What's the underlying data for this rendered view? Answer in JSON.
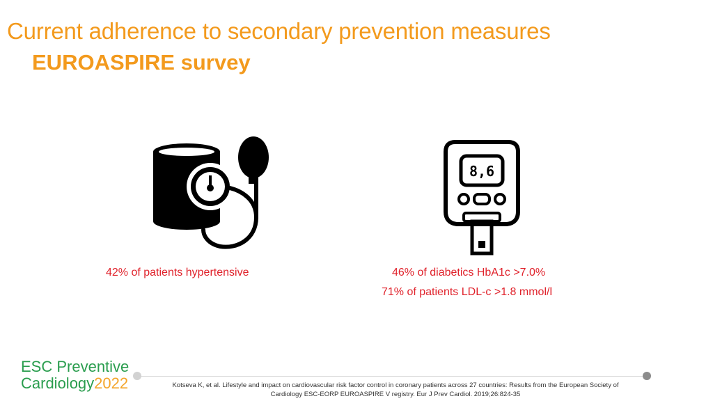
{
  "slide": {
    "title": "Current adherence to secondary prevention measures",
    "subtitle": "EUROASPIRE survey"
  },
  "icons": {
    "blood_pressure": "blood-pressure-monitor-icon",
    "glucometer": "glucometer-icon",
    "glucometer_reading": "8,6"
  },
  "stats": {
    "hypertensive": "42% of patients hypertensive",
    "hba1c": "46% of diabetics HbA1c >7.0%",
    "ldl": "71% of patients LDL-c >1.8 mmol/l"
  },
  "footer": {
    "logo_line1": "ESC Preventive",
    "logo_line2": "Cardiology",
    "logo_year": "2022",
    "citation": "Kotseva K, et al. Lifestyle and impact on cardiovascular risk factor control in coronary patients across 27 countries: Results from the European Society of Cardiology ESC-EORP EUROASPIRE V registry. Eur J Prev Cardiol. 2019;26:824-35"
  },
  "colors": {
    "title": "#f39a1d",
    "stat_text": "#e0222b",
    "logo_green": "#2a9d4e",
    "logo_orange": "#f4a52b"
  }
}
